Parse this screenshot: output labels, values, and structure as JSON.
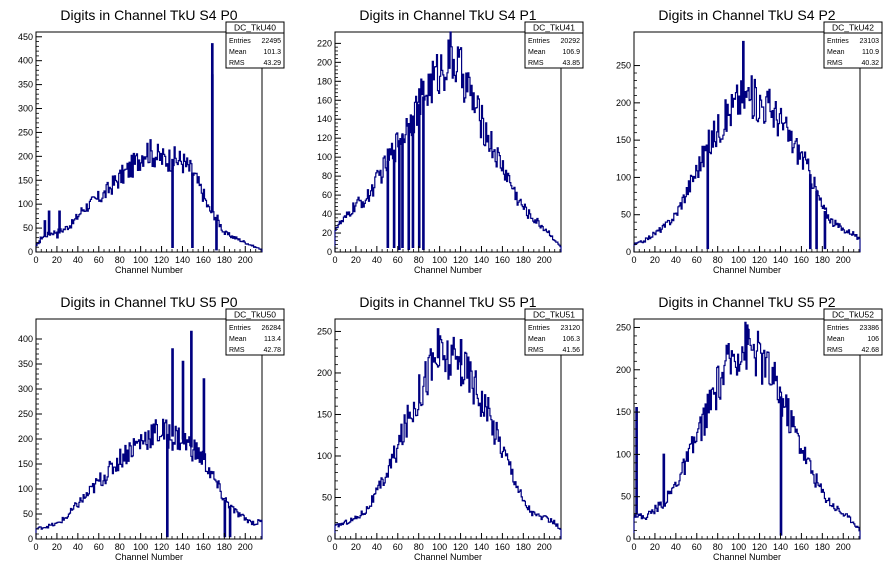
{
  "colors": {
    "histogram": "#000080",
    "axis": "#000000",
    "background": "#ffffff"
  },
  "chart_data": [
    {
      "type": "histogram",
      "title": "Digits in Channel TkU S4 P0",
      "xlabel": "Channel Number",
      "xlim": [
        0,
        216
      ],
      "ylim": [
        0,
        460
      ],
      "xticks": [
        0,
        20,
        40,
        60,
        80,
        100,
        120,
        140,
        160,
        180,
        200
      ],
      "yticks": [
        0,
        50,
        100,
        150,
        200,
        250,
        300,
        350,
        400,
        450
      ],
      "stats": {
        "name": "DC_TkU40",
        "rows": [
          {
            "label": "Entries",
            "value": "22495"
          },
          {
            "label": "Mean",
            "value": "101.3"
          },
          {
            "label": "RMS",
            "value": "43.29"
          }
        ]
      },
      "spikes": [
        {
          "x": 3,
          "y": 20
        },
        {
          "x": 8,
          "y": 65
        },
        {
          "x": 12,
          "y": 85
        },
        {
          "x": 20,
          "y": 30
        },
        {
          "x": 22,
          "y": 85
        },
        {
          "x": 130,
          "y": 10
        },
        {
          "x": 149,
          "y": 10
        },
        {
          "x": 168,
          "y": 435
        },
        {
          "x": 168,
          "y": 370
        },
        {
          "x": 172,
          "y": 5
        }
      ],
      "profile": [
        [
          0,
          10
        ],
        [
          5,
          30
        ],
        [
          15,
          40
        ],
        [
          25,
          45
        ],
        [
          35,
          60
        ],
        [
          45,
          90
        ],
        [
          55,
          105
        ],
        [
          65,
          120
        ],
        [
          75,
          145
        ],
        [
          85,
          165
        ],
        [
          95,
          185
        ],
        [
          105,
          215
        ],
        [
          112,
          205
        ],
        [
          120,
          195
        ],
        [
          130,
          195
        ],
        [
          140,
          190
        ],
        [
          150,
          165
        ],
        [
          160,
          120
        ],
        [
          165,
          90
        ],
        [
          172,
          75
        ],
        [
          180,
          40
        ],
        [
          190,
          30
        ],
        [
          200,
          20
        ],
        [
          210,
          10
        ],
        [
          216,
          5
        ]
      ]
    },
    {
      "type": "histogram",
      "title": "Digits in Channel TkU S4 P1",
      "xlabel": "Channel Number",
      "xlim": [
        0,
        216
      ],
      "ylim": [
        0,
        232
      ],
      "xticks": [
        0,
        20,
        40,
        60,
        80,
        100,
        120,
        140,
        160,
        180,
        200
      ],
      "yticks": [
        0,
        20,
        40,
        60,
        80,
        100,
        120,
        140,
        160,
        180,
        200,
        220
      ],
      "stats": {
        "name": "DC_TkU41",
        "rows": [
          {
            "label": "Entries",
            "value": "20292"
          },
          {
            "label": "Mean",
            "value": "106.9"
          },
          {
            "label": "RMS",
            "value": "43.85"
          }
        ]
      },
      "spikes": [
        {
          "x": 50,
          "y": 5
        },
        {
          "x": 56,
          "y": 5
        },
        {
          "x": 61,
          "y": 3
        },
        {
          "x": 64,
          "y": 5
        },
        {
          "x": 70,
          "y": 3
        },
        {
          "x": 74,
          "y": 5
        },
        {
          "x": 80,
          "y": 5
        },
        {
          "x": 84,
          "y": 3
        }
      ],
      "profile": [
        [
          0,
          25
        ],
        [
          10,
          35
        ],
        [
          20,
          50
        ],
        [
          30,
          55
        ],
        [
          40,
          75
        ],
        [
          50,
          95
        ],
        [
          60,
          115
        ],
        [
          70,
          135
        ],
        [
          80,
          155
        ],
        [
          90,
          175
        ],
        [
          100,
          190
        ],
        [
          110,
          205
        ],
        [
          118,
          195
        ],
        [
          125,
          180
        ],
        [
          135,
          150
        ],
        [
          145,
          125
        ],
        [
          155,
          100
        ],
        [
          165,
          80
        ],
        [
          175,
          55
        ],
        [
          185,
          40
        ],
        [
          195,
          30
        ],
        [
          205,
          20
        ],
        [
          212,
          10
        ],
        [
          216,
          5
        ]
      ]
    },
    {
      "type": "histogram",
      "title": "Digits in Channel TkU S4 P2",
      "xlabel": "Channel Number",
      "xlim": [
        0,
        216
      ],
      "ylim": [
        0,
        295
      ],
      "xticks": [
        0,
        20,
        40,
        60,
        80,
        100,
        120,
        140,
        160,
        180,
        200
      ],
      "yticks": [
        0,
        50,
        100,
        150,
        200,
        250
      ],
      "stats": {
        "name": "DC_TkU42",
        "rows": [
          {
            "label": "Entries",
            "value": "23103"
          },
          {
            "label": "Mean",
            "value": "110.9"
          },
          {
            "label": "RMS",
            "value": "40.32"
          }
        ]
      },
      "spikes": [
        {
          "x": 70,
          "y": 5
        },
        {
          "x": 104,
          "y": 282
        },
        {
          "x": 168,
          "y": 5
        },
        {
          "x": 174,
          "y": 5
        },
        {
          "x": 182,
          "y": 5
        }
      ],
      "profile": [
        [
          0,
          10
        ],
        [
          10,
          15
        ],
        [
          20,
          25
        ],
        [
          30,
          35
        ],
        [
          40,
          50
        ],
        [
          50,
          80
        ],
        [
          60,
          110
        ],
        [
          70,
          140
        ],
        [
          80,
          165
        ],
        [
          90,
          185
        ],
        [
          100,
          205
        ],
        [
          110,
          210
        ],
        [
          120,
          200
        ],
        [
          130,
          195
        ],
        [
          140,
          175
        ],
        [
          150,
          150
        ],
        [
          160,
          130
        ],
        [
          170,
          100
        ],
        [
          180,
          60
        ],
        [
          190,
          40
        ],
        [
          200,
          30
        ],
        [
          210,
          25
        ],
        [
          216,
          15
        ]
      ]
    },
    {
      "type": "histogram",
      "title": "Digits in Channel TkU S5 P0",
      "xlabel": "Channel Number",
      "xlim": [
        0,
        216
      ],
      "ylim": [
        0,
        440
      ],
      "xticks": [
        0,
        20,
        40,
        60,
        80,
        100,
        120,
        140,
        160,
        180,
        200
      ],
      "yticks": [
        0,
        50,
        100,
        150,
        200,
        250,
        300,
        350,
        400
      ],
      "stats": {
        "name": "DC_TkU50",
        "rows": [
          {
            "label": "Entries",
            "value": "26284"
          },
          {
            "label": "Mean",
            "value": "113.4"
          },
          {
            "label": "RMS",
            "value": "42.78"
          }
        ]
      },
      "spikes": [
        {
          "x": 125,
          "y": 5
        },
        {
          "x": 130,
          "y": 380
        },
        {
          "x": 140,
          "y": 355
        },
        {
          "x": 148,
          "y": 415
        },
        {
          "x": 160,
          "y": 320
        },
        {
          "x": 180,
          "y": 5
        },
        {
          "x": 185,
          "y": 5
        }
      ],
      "profile": [
        [
          0,
          20
        ],
        [
          10,
          25
        ],
        [
          20,
          30
        ],
        [
          30,
          45
        ],
        [
          40,
          70
        ],
        [
          50,
          90
        ],
        [
          60,
          115
        ],
        [
          70,
          135
        ],
        [
          80,
          160
        ],
        [
          90,
          180
        ],
        [
          100,
          195
        ],
        [
          110,
          210
        ],
        [
          120,
          215
        ],
        [
          130,
          205
        ],
        [
          140,
          200
        ],
        [
          150,
          180
        ],
        [
          160,
          160
        ],
        [
          170,
          120
        ],
        [
          180,
          80
        ],
        [
          190,
          55
        ],
        [
          200,
          40
        ],
        [
          210,
          30
        ],
        [
          216,
          40
        ]
      ]
    },
    {
      "type": "histogram",
      "title": "Digits in Channel TkU S5 P1",
      "xlabel": "Channel Number",
      "xlim": [
        0,
        216
      ],
      "ylim": [
        0,
        265
      ],
      "xticks": [
        0,
        20,
        40,
        60,
        80,
        100,
        120,
        140,
        160,
        180,
        200
      ],
      "yticks": [
        0,
        50,
        100,
        150,
        200,
        250
      ],
      "stats": {
        "name": "DC_TkU51",
        "rows": [
          {
            "label": "Entries",
            "value": "23120"
          },
          {
            "label": "Mean",
            "value": "106.3"
          },
          {
            "label": "RMS",
            "value": "41.56"
          }
        ]
      },
      "spikes": [
        {
          "x": 98,
          "y": 253
        },
        {
          "x": 120,
          "y": 240
        }
      ],
      "profile": [
        [
          0,
          15
        ],
        [
          10,
          20
        ],
        [
          20,
          25
        ],
        [
          30,
          35
        ],
        [
          40,
          55
        ],
        [
          50,
          80
        ],
        [
          60,
          110
        ],
        [
          70,
          145
        ],
        [
          80,
          175
        ],
        [
          90,
          205
        ],
        [
          100,
          220
        ],
        [
          110,
          215
        ],
        [
          120,
          210
        ],
        [
          130,
          195
        ],
        [
          140,
          170
        ],
        [
          150,
          140
        ],
        [
          160,
          110
        ],
        [
          170,
          80
        ],
        [
          180,
          45
        ],
        [
          190,
          30
        ],
        [
          200,
          25
        ],
        [
          210,
          20
        ],
        [
          216,
          10
        ]
      ]
    },
    {
      "type": "histogram",
      "title": "Digits in Channel TkU S5 P2",
      "xlabel": "Channel Number",
      "xlim": [
        0,
        216
      ],
      "ylim": [
        0,
        260
      ],
      "xticks": [
        0,
        20,
        40,
        60,
        80,
        100,
        120,
        140,
        160,
        180,
        200
      ],
      "yticks": [
        0,
        50,
        100,
        150,
        200,
        250
      ],
      "stats": {
        "name": "DC_TkU52",
        "rows": [
          {
            "label": "Entries",
            "value": "23386"
          },
          {
            "label": "Mean",
            "value": "106"
          },
          {
            "label": "RMS",
            "value": "42.68"
          }
        ]
      },
      "spikes": [
        {
          "x": 2,
          "y": 155
        },
        {
          "x": 28,
          "y": 100
        },
        {
          "x": 108,
          "y": 248
        },
        {
          "x": 140,
          "y": 5
        }
      ],
      "profile": [
        [
          0,
          30
        ],
        [
          10,
          25
        ],
        [
          20,
          35
        ],
        [
          30,
          45
        ],
        [
          40,
          65
        ],
        [
          50,
          90
        ],
        [
          60,
          120
        ],
        [
          70,
          150
        ],
        [
          80,
          180
        ],
        [
          90,
          205
        ],
        [
          100,
          225
        ],
        [
          110,
          230
        ],
        [
          120,
          215
        ],
        [
          130,
          195
        ],
        [
          140,
          170
        ],
        [
          150,
          140
        ],
        [
          160,
          110
        ],
        [
          170,
          80
        ],
        [
          180,
          55
        ],
        [
          190,
          40
        ],
        [
          200,
          30
        ],
        [
          210,
          20
        ],
        [
          216,
          10
        ]
      ]
    }
  ]
}
